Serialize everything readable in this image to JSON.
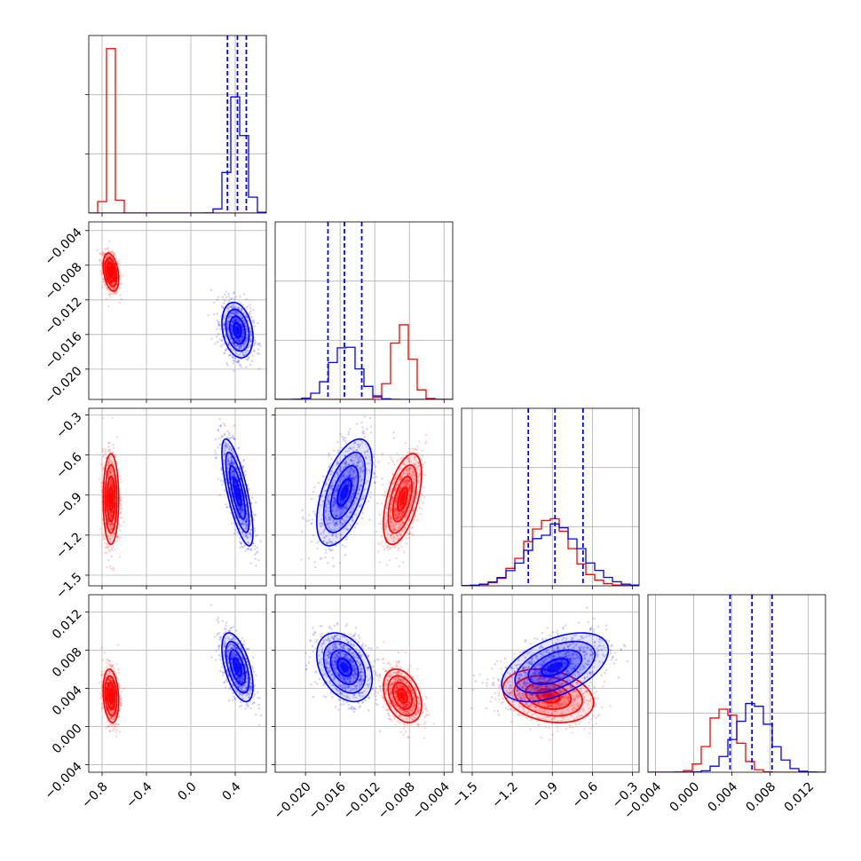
{
  "chart_data": {
    "type": "corner",
    "grid": true,
    "parameters": [
      {
        "range": [
          -0.92,
          0.68
        ],
        "ticks": [
          "-0.8",
          "-0.4",
          "0.0",
          "0.4"
        ]
      },
      {
        "range": [
          -0.0235,
          -0.003
        ],
        "ticks": [
          "-0.020",
          "-0.016",
          "-0.012",
          "-0.008",
          "-0.004"
        ]
      },
      {
        "range": [
          -1.58,
          -0.25
        ],
        "ticks": [
          "-1.5",
          "-1.2",
          "-0.9",
          "-0.6",
          "-0.3"
        ]
      },
      {
        "range": [
          -0.0048,
          0.0138
        ],
        "ticks": [
          "-0.004",
          "0.000",
          "0.004",
          "0.008",
          "0.012"
        ]
      }
    ],
    "series": [
      {
        "color": "#ff0000",
        "mean": [
          -0.72,
          -0.0088,
          -0.93,
          0.0032
        ],
        "std": [
          0.035,
          0.0011,
          0.17,
          0.0014
        ],
        "corr": [
          [
            1,
            -0.35,
            0.0,
            -0.2
          ],
          [
            -0.35,
            1,
            0.55,
            -0.35
          ],
          [
            0.0,
            0.55,
            1,
            -0.25
          ],
          [
            -0.2,
            -0.35,
            -0.25,
            1
          ]
        ],
        "hist_peaks": [
          2.72,
          1.2,
          1.14,
          1.13
        ],
        "quantile_lines": []
      },
      {
        "color": "#0000ff",
        "mean": [
          0.42,
          -0.0155,
          -0.88,
          0.0062
        ],
        "std": [
          0.07,
          0.0016,
          0.2,
          0.0018
        ],
        "corr": [
          [
            1,
            -0.25,
            -0.75,
            -0.55
          ],
          [
            -0.25,
            1,
            0.55,
            -0.35
          ],
          [
            -0.75,
            0.55,
            1,
            0.5
          ],
          [
            -0.55,
            -0.35,
            0.5,
            1
          ]
        ],
        "hist_peaks": [
          1.9,
          0.92,
          0.98,
          1.18
        ],
        "quantile_lines": [
          [
            0.33,
            0.42,
            0.5
          ],
          [
            -0.0174,
            -0.0155,
            -0.0135
          ],
          [
            -1.08,
            -0.88,
            -0.67
          ],
          [
            0.0038,
            0.0061,
            0.0082
          ]
        ]
      }
    ]
  }
}
